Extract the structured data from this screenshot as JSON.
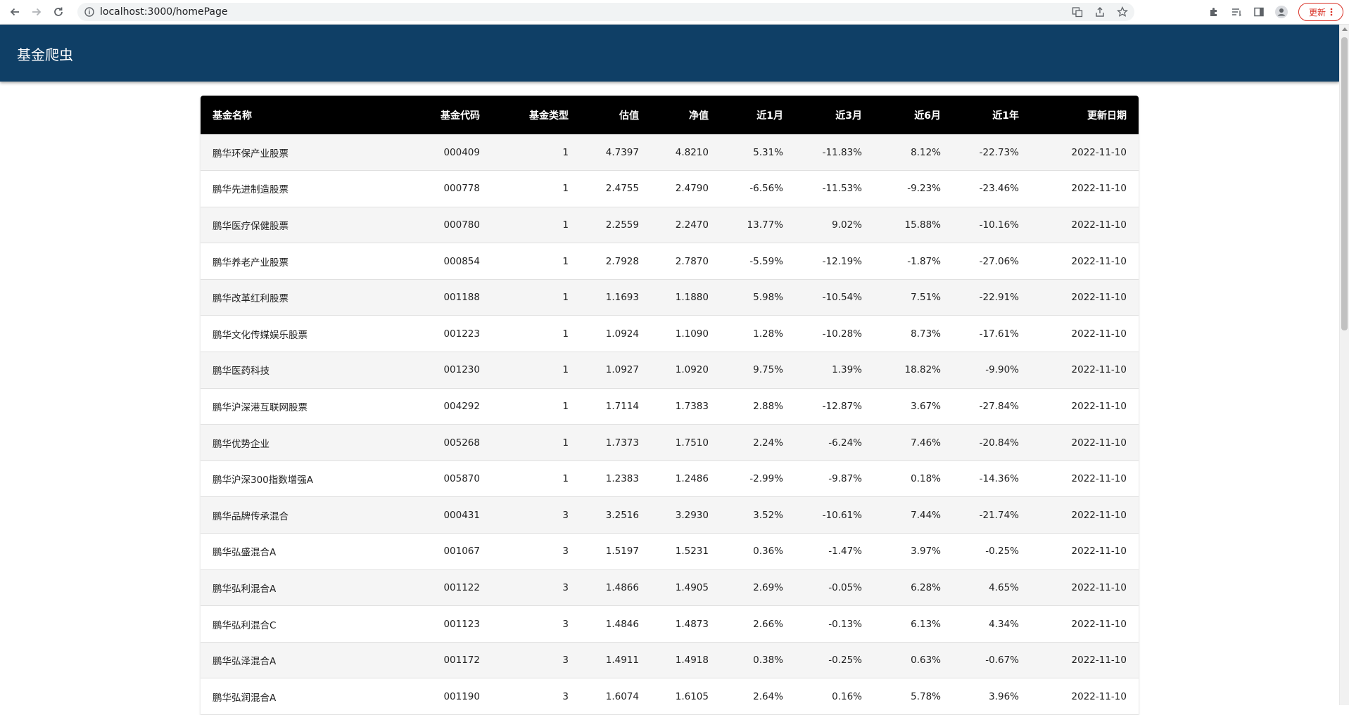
{
  "browser": {
    "url": "localhost:3000/homePage",
    "update_label": "更新"
  },
  "app": {
    "title": "基金爬虫"
  },
  "table": {
    "columns": [
      "基金名称",
      "基金代码",
      "基金类型",
      "估值",
      "净值",
      "近1月",
      "近3月",
      "近6月",
      "近1年",
      "更新日期"
    ],
    "rows": [
      [
        "鹏华环保产业股票",
        "000409",
        "1",
        "4.7397",
        "4.8210",
        "5.31%",
        "-11.83%",
        "8.12%",
        "-22.73%",
        "2022-11-10"
      ],
      [
        "鹏华先进制造股票",
        "000778",
        "1",
        "2.4755",
        "2.4790",
        "-6.56%",
        "-11.53%",
        "-9.23%",
        "-23.46%",
        "2022-11-10"
      ],
      [
        "鹏华医疗保健股票",
        "000780",
        "1",
        "2.2559",
        "2.2470",
        "13.77%",
        "9.02%",
        "15.88%",
        "-10.16%",
        "2022-11-10"
      ],
      [
        "鹏华养老产业股票",
        "000854",
        "1",
        "2.7928",
        "2.7870",
        "-5.59%",
        "-12.19%",
        "-1.87%",
        "-27.06%",
        "2022-11-10"
      ],
      [
        "鹏华改革红利股票",
        "001188",
        "1",
        "1.1693",
        "1.1880",
        "5.98%",
        "-10.54%",
        "7.51%",
        "-22.91%",
        "2022-11-10"
      ],
      [
        "鹏华文化传媒娱乐股票",
        "001223",
        "1",
        "1.0924",
        "1.1090",
        "1.28%",
        "-10.28%",
        "8.73%",
        "-17.61%",
        "2022-11-10"
      ],
      [
        "鹏华医药科技",
        "001230",
        "1",
        "1.0927",
        "1.0920",
        "9.75%",
        "1.39%",
        "18.82%",
        "-9.90%",
        "2022-11-10"
      ],
      [
        "鹏华沪深港互联网股票",
        "004292",
        "1",
        "1.7114",
        "1.7383",
        "2.88%",
        "-12.87%",
        "3.67%",
        "-27.84%",
        "2022-11-10"
      ],
      [
        "鹏华优势企业",
        "005268",
        "1",
        "1.7373",
        "1.7510",
        "2.24%",
        "-6.24%",
        "7.46%",
        "-20.84%",
        "2022-11-10"
      ],
      [
        "鹏华沪深300指数增强A",
        "005870",
        "1",
        "1.2383",
        "1.2486",
        "-2.99%",
        "-9.87%",
        "0.18%",
        "-14.36%",
        "2022-11-10"
      ],
      [
        "鹏华品牌传承混合",
        "000431",
        "3",
        "3.2516",
        "3.2930",
        "3.52%",
        "-10.61%",
        "7.44%",
        "-21.74%",
        "2022-11-10"
      ],
      [
        "鹏华弘盛混合A",
        "001067",
        "3",
        "1.5197",
        "1.5231",
        "0.36%",
        "-1.47%",
        "3.97%",
        "-0.25%",
        "2022-11-10"
      ],
      [
        "鹏华弘利混合A",
        "001122",
        "3",
        "1.4866",
        "1.4905",
        "2.69%",
        "-0.05%",
        "6.28%",
        "4.65%",
        "2022-11-10"
      ],
      [
        "鹏华弘利混合C",
        "001123",
        "3",
        "1.4846",
        "1.4873",
        "2.66%",
        "-0.13%",
        "6.13%",
        "4.34%",
        "2022-11-10"
      ],
      [
        "鹏华弘泽混合A",
        "001172",
        "3",
        "1.4911",
        "1.4918",
        "0.38%",
        "-0.25%",
        "0.63%",
        "-0.67%",
        "2022-11-10"
      ],
      [
        "鹏华弘润混合A",
        "001190",
        "3",
        "1.6074",
        "1.6105",
        "2.64%",
        "0.16%",
        "5.78%",
        "3.96%",
        "2022-11-10"
      ]
    ]
  },
  "icons": {
    "back": "arrow-left-icon",
    "forward": "arrow-right-icon",
    "reload": "reload-icon",
    "info": "info-icon",
    "translate": "translate-icon",
    "share": "share-icon",
    "bookmark": "star-icon",
    "extensions": "puzzle-icon",
    "reading_list": "reading-list-icon",
    "side_panel": "side-panel-icon",
    "profile": "profile-icon",
    "menu": "kebab-menu-icon"
  },
  "colors": {
    "header_bg": "#0f3f66",
    "table_header_bg": "#000000",
    "row_alt_bg": "#f5f5f5",
    "update_red": "#d93025"
  }
}
